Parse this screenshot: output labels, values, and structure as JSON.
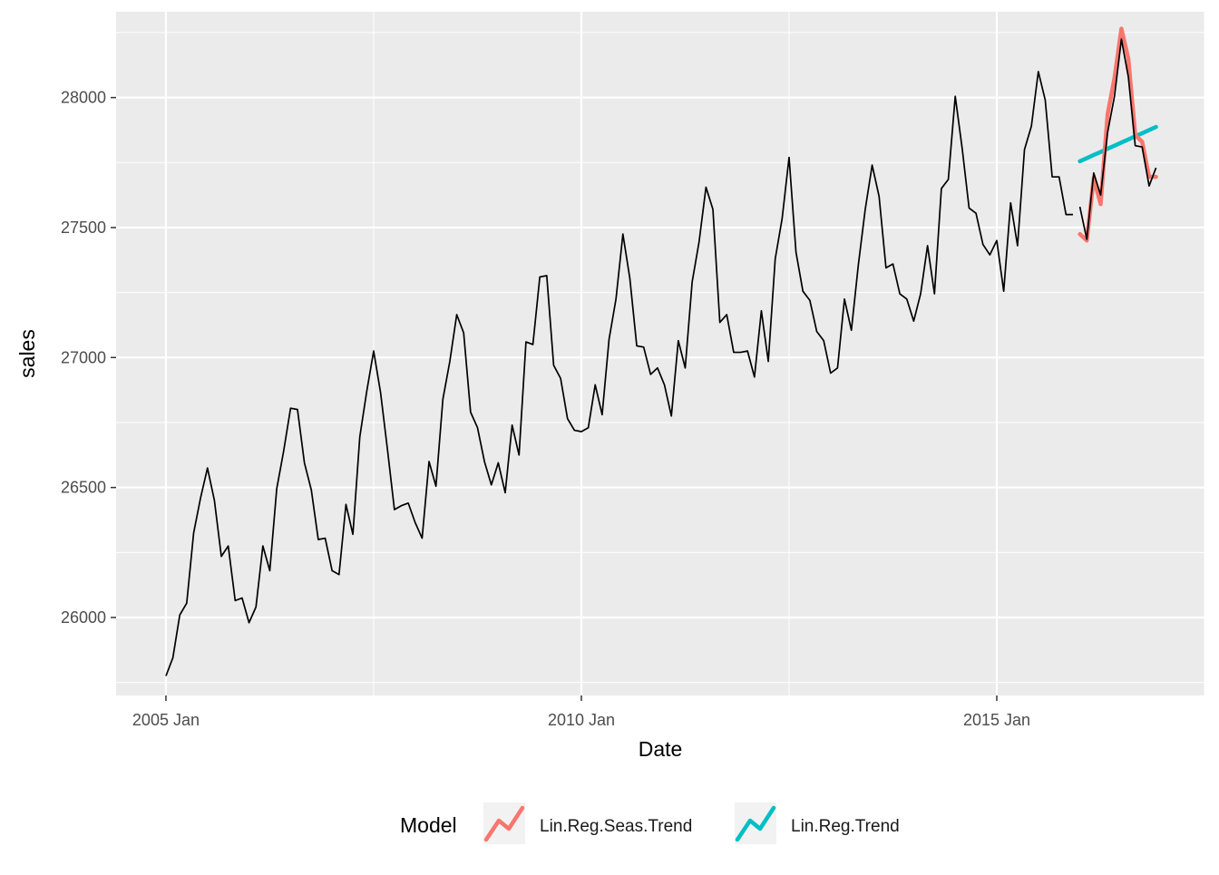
{
  "chart_data": {
    "type": "line",
    "xlabel": "Date",
    "ylabel": "sales",
    "x_ticks": [
      "2005 Jan",
      "2010 Jan",
      "2015 Jan"
    ],
    "x_tick_values": [
      2005.0,
      2010.0,
      2015.0
    ],
    "y_ticks": [
      26000,
      26500,
      27000,
      27500,
      28000
    ],
    "xlim": [
      2004.4,
      2017.5
    ],
    "ylim": [
      25700,
      28330
    ],
    "grid": true,
    "legend_position": "bottom",
    "legend_title": "Model",
    "series": [
      {
        "role": "actual",
        "color": "#000000",
        "x_start": 2005.0,
        "x_step_months": 1,
        "values": [
          25775,
          25845,
          26010,
          26055,
          26325,
          26460,
          26575,
          26450,
          26235,
          26275,
          26065,
          26075,
          25980,
          26040,
          26275,
          26180,
          26495,
          26640,
          26805,
          26800,
          26595,
          26490,
          26300,
          26305,
          26180,
          26165,
          26435,
          26320,
          26695,
          26870,
          27025,
          26865,
          26645,
          26415,
          26430,
          26440,
          26365,
          26305,
          26600,
          26505,
          26840,
          26985,
          27165,
          27095,
          26790,
          26730,
          26600,
          26510,
          26595,
          26480,
          26740,
          26625,
          27060,
          27050,
          27310,
          27315,
          26970,
          26920,
          26765,
          26720,
          26715,
          26730,
          26895,
          26780,
          27070,
          27225,
          27475,
          27305,
          27045,
          27040,
          26935,
          26960,
          26895,
          26775,
          27065,
          26960,
          27290,
          27445,
          27655,
          27570,
          27135,
          27165,
          27020,
          27020,
          27025,
          26925,
          27180,
          26985,
          27380,
          27535,
          27770,
          27405,
          27255,
          27220,
          27100,
          27065,
          26940,
          26960,
          27225,
          27105,
          27355,
          27570,
          27740,
          27620,
          27345,
          27360,
          27245,
          27225,
          27140,
          27245,
          27430,
          27245,
          27650,
          27685,
          28005,
          27805,
          27575,
          27555,
          27435,
          27395,
          27450,
          27255,
          27595,
          27430,
          27800,
          27890,
          28100,
          27990,
          27695,
          27695,
          27550,
          27550
        ]
      },
      {
        "role": "actual-test",
        "color": "#000000",
        "x_start": 2016.0,
        "x_step_months": 1,
        "values": [
          27580,
          27455,
          27710,
          27625,
          27865,
          28005,
          28225,
          28080,
          27815,
          27810,
          27660,
          27730
        ]
      },
      {
        "name": "Lin.Reg.Seas.Trend",
        "color": "#F8766D",
        "x_start": 2016.0,
        "x_step_months": 1,
        "values": [
          27475,
          27450,
          27690,
          27590,
          27935,
          28075,
          28265,
          28150,
          27855,
          27830,
          27695,
          27695
        ]
      },
      {
        "name": "Lin.Reg.Trend",
        "color": "#00BFC4",
        "x_start": 2016.0,
        "x_step_months": 1,
        "values": [
          27755,
          27767,
          27779,
          27791,
          27803,
          27815,
          27827,
          27839,
          27851,
          27863,
          27875,
          27887
        ]
      }
    ]
  }
}
